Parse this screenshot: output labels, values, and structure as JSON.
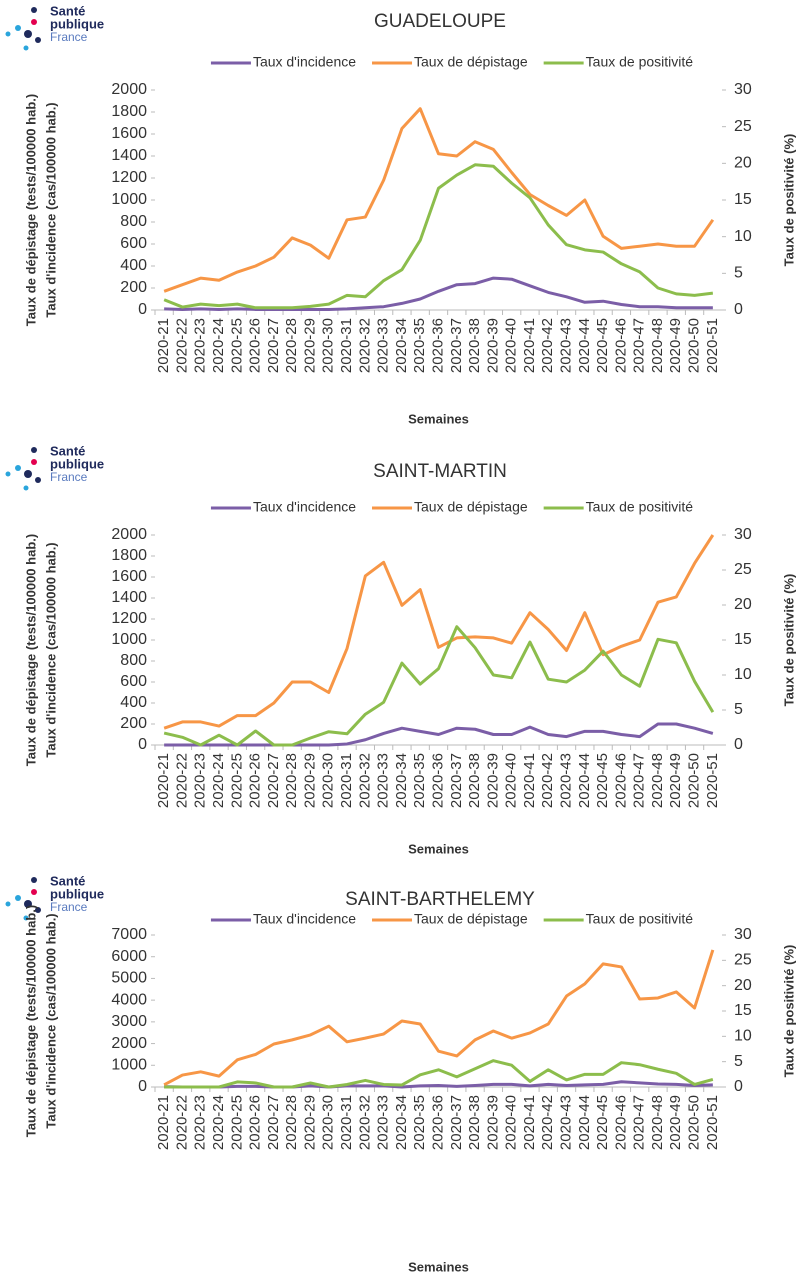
{
  "logo": [
    "Santé",
    "publique",
    "France"
  ],
  "chart_data": [
    {
      "type": "line",
      "title": "GUADELOUPE",
      "x_label": "Semaines",
      "y_label": [
        "Taux de dépistage (tests/100000 hab.)",
        "Taux d'incidence (cas/100000 hab.)"
      ],
      "y2_label": "Taux de positivité (%)",
      "categories": [
        "2020-21",
        "2020-22",
        "2020-23",
        "2020-24",
        "2020-25",
        "2020-26",
        "2020-27",
        "2020-28",
        "2020-29",
        "2020-30",
        "2020-31",
        "2020-32",
        "2020-33",
        "2020-34",
        "2020-35",
        "2020-36",
        "2020-37",
        "2020-38",
        "2020-39",
        "2020-40",
        "2020-41",
        "2020-42",
        "2020-43",
        "2020-44",
        "2020-45",
        "2020-46",
        "2020-47",
        "2020-48",
        "2020-49",
        "2020-50",
        "2020-51"
      ],
      "ylim": [
        0,
        2000
      ],
      "yticks": [
        0,
        200,
        400,
        600,
        800,
        1000,
        1200,
        1400,
        1600,
        1800,
        2000
      ],
      "y2lim": [
        0,
        30
      ],
      "y2ticks": [
        0,
        5,
        10,
        15,
        20,
        25,
        30
      ],
      "series": [
        {
          "name": "Taux d'incidence",
          "color": "#7b5ea7",
          "values": [
            10,
            5,
            10,
            5,
            10,
            5,
            5,
            5,
            5,
            5,
            10,
            20,
            30,
            60,
            100,
            170,
            230,
            240,
            290,
            280,
            220,
            160,
            120,
            70,
            80,
            50,
            30,
            30,
            20,
            20,
            20
          ]
        },
        {
          "name": "Taux de dépistage",
          "color": "#f79646",
          "values": [
            170,
            230,
            290,
            270,
            345,
            400,
            480,
            655,
            590,
            470,
            820,
            845,
            1180,
            1650,
            1830,
            1420,
            1400,
            1530,
            1460,
            1250,
            1050,
            950,
            860,
            1000,
            670,
            560,
            580,
            600,
            580,
            580,
            820
          ]
        },
        {
          "name": "Taux de positivité",
          "color": "#8cbd4c",
          "axis": "y2",
          "values": [
            1.4,
            0.4,
            0.8,
            0.6,
            0.8,
            0.3,
            0.3,
            0.3,
            0.5,
            0.8,
            2.0,
            1.8,
            4.0,
            5.5,
            9.5,
            16.6,
            18.4,
            19.8,
            19.6,
            17.3,
            15.3,
            11.6,
            8.9,
            8.2,
            7.9,
            6.3,
            5.2,
            3.0,
            2.2,
            2.0,
            2.3
          ]
        }
      ]
    },
    {
      "type": "line",
      "title": "SAINT-MARTIN",
      "x_label": "Semaines",
      "y_label": [
        "Taux de dépistage (tests/100000 hab.)",
        "Taux d'incidence (cas/100000 hab.)"
      ],
      "y2_label": "Taux de positivité (%)",
      "categories": [
        "2020-21",
        "2020-22",
        "2020-23",
        "2020-24",
        "2020-25",
        "2020-26",
        "2020-27",
        "2020-28",
        "2020-29",
        "2020-30",
        "2020-31",
        "2020-32",
        "2020-33",
        "2020-34",
        "2020-35",
        "2020-36",
        "2020-37",
        "2020-38",
        "2020-39",
        "2020-40",
        "2020-41",
        "2020-42",
        "2020-43",
        "2020-44",
        "2020-45",
        "2020-46",
        "2020-47",
        "2020-48",
        "2020-49",
        "2020-50",
        "2020-51"
      ],
      "ylim": [
        0,
        2000
      ],
      "yticks": [
        0,
        200,
        400,
        600,
        800,
        1000,
        1200,
        1400,
        1600,
        1800,
        2000
      ],
      "y2lim": [
        0,
        30
      ],
      "y2ticks": [
        0,
        5,
        10,
        15,
        20,
        25,
        30
      ],
      "series": [
        {
          "name": "Taux d'incidence",
          "color": "#7b5ea7",
          "values": [
            0,
            0,
            0,
            0,
            0,
            0,
            0,
            0,
            0,
            0,
            10,
            50,
            110,
            160,
            130,
            100,
            160,
            150,
            100,
            100,
            170,
            100,
            80,
            130,
            130,
            100,
            80,
            200,
            200,
            160,
            110
          ]
        },
        {
          "name": "Taux de dépistage",
          "color": "#f79646",
          "values": [
            160,
            220,
            220,
            180,
            280,
            280,
            400,
            600,
            600,
            500,
            920,
            1610,
            1740,
            1330,
            1480,
            930,
            1020,
            1030,
            1020,
            970,
            1260,
            1100,
            900,
            1260,
            860,
            940,
            1000,
            1360,
            1410,
            1730,
            2000
          ]
        },
        {
          "name": "Taux de positivité",
          "color": "#8cbd4c",
          "axis": "y2",
          "values": [
            1.7,
            1.1,
            0,
            1.4,
            0,
            2.0,
            0,
            0,
            1.0,
            1.9,
            1.6,
            4.4,
            6.1,
            11.7,
            8.7,
            10.9,
            16.9,
            13.9,
            10.0,
            9.6,
            14.7,
            9.4,
            9.0,
            10.7,
            13.4,
            10.0,
            8.4,
            15.1,
            14.6,
            9.1,
            4.7
          ]
        }
      ]
    },
    {
      "type": "line",
      "title": "SAINT-BARTHELEMY",
      "x_label": "Semaines",
      "y_label": [
        "Taux de dépistage (tests/100000 hab.)",
        "Taux d'incidence (cas/100000 hab.)"
      ],
      "y2_label": "Taux de positivité (%)",
      "categories": [
        "2020-21",
        "2020-22",
        "2020-23",
        "2020-24",
        "2020-25",
        "2020-26",
        "2020-27",
        "2020-28",
        "2020-29",
        "2020-30",
        "2020-31",
        "2020-32",
        "2020-33",
        "2020-34",
        "2020-35",
        "2020-36",
        "2020-37",
        "2020-38",
        "2020-39",
        "2020-40",
        "2020-41",
        "2020-42",
        "2020-43",
        "2020-44",
        "2020-45",
        "2020-46",
        "2020-47",
        "2020-48",
        "2020-49",
        "2020-50",
        "2020-51"
      ],
      "ylim": [
        0,
        7000
      ],
      "yticks": [
        0,
        1000,
        2000,
        3000,
        4000,
        5000,
        6000,
        7000
      ],
      "y2lim": [
        0,
        30
      ],
      "y2ticks": [
        0,
        5,
        10,
        15,
        20,
        25,
        30
      ],
      "series": [
        {
          "name": "Taux d'incidence",
          "color": "#7b5ea7",
          "values": [
            20,
            0,
            0,
            0,
            30,
            30,
            0,
            0,
            50,
            0,
            50,
            50,
            50,
            0,
            50,
            70,
            30,
            70,
            120,
            120,
            50,
            120,
            70,
            100,
            120,
            240,
            190,
            140,
            120,
            70,
            100
          ]
        },
        {
          "name": "Taux de dépistage",
          "color": "#f79646",
          "values": [
            100,
            550,
            700,
            500,
            1250,
            1500,
            1980,
            2170,
            2400,
            2800,
            2080,
            2250,
            2440,
            3040,
            2900,
            1650,
            1430,
            2170,
            2580,
            2250,
            2490,
            2900,
            4190,
            4750,
            5670,
            5530,
            4050,
            4100,
            4380,
            3640,
            6310
          ]
        },
        {
          "name": "Taux de positivité",
          "color": "#8cbd4c",
          "axis": "y2",
          "values": [
            0,
            0,
            0,
            0,
            1.0,
            0.8,
            0,
            0,
            0.8,
            0,
            0.5,
            1.3,
            0.5,
            0.4,
            2.4,
            3.4,
            2.0,
            3.6,
            5.2,
            4.3,
            1.1,
            3.4,
            1.4,
            2.5,
            2.5,
            4.8,
            4.4,
            3.5,
            2.7,
            0.5,
            1.5
          ]
        }
      ]
    }
  ]
}
